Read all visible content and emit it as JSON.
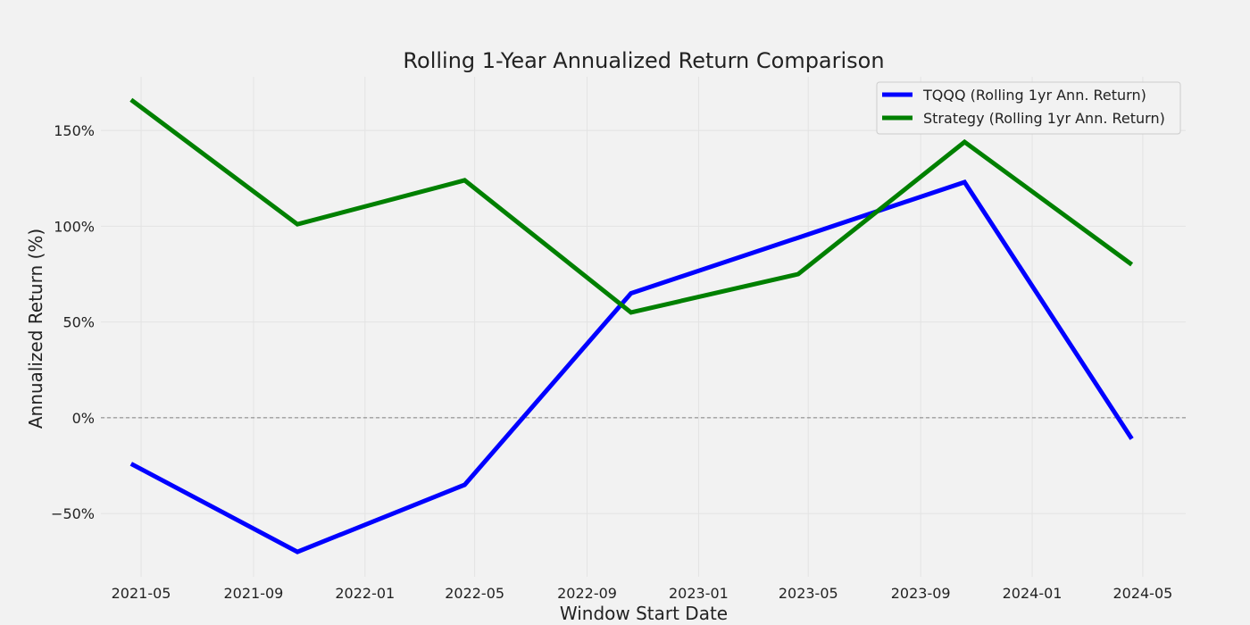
{
  "chart_data": {
    "type": "line",
    "title": "Rolling 1-Year Annualized Return Comparison",
    "xlabel": "Window Start Date",
    "ylabel": "Annualized Return (%)",
    "x": [
      "2021-04-20",
      "2021-10-19",
      "2022-04-20",
      "2022-10-19",
      "2023-04-20",
      "2023-10-19",
      "2024-04-19"
    ],
    "series": [
      {
        "name": "TQQQ (Rolling 1yr Ann. Return)",
        "color": "#0000ff",
        "values": [
          -24,
          -70,
          -35,
          65,
          94,
          123,
          -11
        ]
      },
      {
        "name": "Strategy (Rolling 1yr Ann. Return)",
        "color": "#008000",
        "values": [
          166,
          101,
          124,
          55,
          75,
          144,
          80
        ]
      }
    ],
    "x_ticks": [
      "2021-05",
      "2021-09",
      "2022-01",
      "2022-05",
      "2022-09",
      "2023-01",
      "2023-05",
      "2023-09",
      "2024-01",
      "2024-05"
    ],
    "y_ticks": [
      -50,
      0,
      50,
      100,
      150
    ],
    "y_tick_labels": [
      "−50%",
      "0%",
      "50%",
      "100%",
      "150%"
    ],
    "xlim": [
      "2021-03-18",
      "2024-06-17"
    ],
    "ylim": [
      -83,
      178
    ],
    "reference_line": {
      "y": 0,
      "style": "dashed",
      "color": "#808080"
    },
    "grid": true,
    "legend": "top-right"
  }
}
